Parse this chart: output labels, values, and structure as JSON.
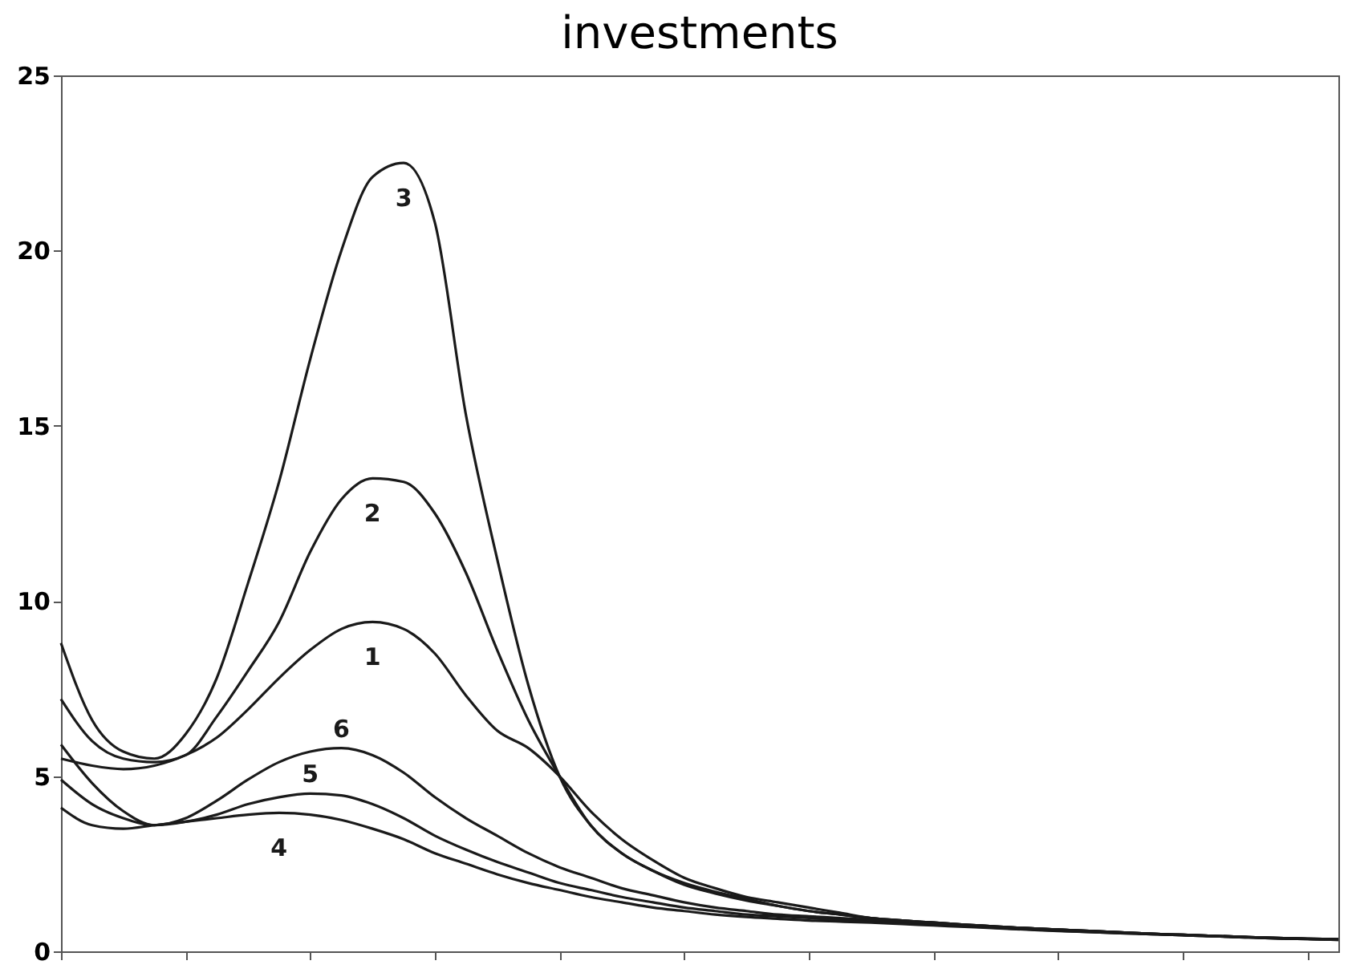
{
  "chart_data": {
    "type": "line",
    "title": "investments",
    "categories": [
      null,
      null,
      null,
      null,
      null,
      null,
      null,
      null,
      null,
      null,
      null,
      null,
      null,
      null,
      null,
      null,
      null,
      null,
      null,
      null,
      null,
      null,
      null,
      null,
      null,
      null,
      null,
      null,
      null,
      null,
      null,
      null,
      null,
      null,
      null,
      null,
      null,
      null,
      null,
      null,
      null,
      null
    ],
    "series": [
      {
        "name": "1",
        "color": "#1a1a1a",
        "values": [
          5.5,
          5.3,
          5.2,
          5.3,
          5.6,
          6.1,
          6.9,
          7.8,
          8.6,
          9.2,
          9.4,
          9.2,
          8.5,
          7.3,
          6.3,
          5.8,
          5.0,
          4.0,
          3.2,
          2.6,
          2.1,
          1.8,
          1.55,
          1.4,
          1.25,
          1.1,
          0.95,
          0.88,
          0.82,
          0.76,
          0.71,
          0.66,
          0.62,
          0.58,
          0.54,
          0.5,
          0.47,
          0.44,
          0.41,
          0.38,
          0.36,
          0.34
        ]
      },
      {
        "name": "2",
        "color": "#1a1a1a",
        "values": [
          7.2,
          6.0,
          5.5,
          5.4,
          5.6,
          6.7,
          8.0,
          9.4,
          11.4,
          12.9,
          13.5,
          13.4,
          12.5,
          10.8,
          8.6,
          6.6,
          5.0,
          3.6,
          2.8,
          2.3,
          1.9,
          1.65,
          1.45,
          1.3,
          1.15,
          1.05,
          0.95,
          0.88,
          0.82,
          0.76,
          0.71,
          0.66,
          0.62,
          0.58,
          0.54,
          0.5,
          0.47,
          0.44,
          0.41,
          0.38,
          0.36,
          0.34
        ]
      },
      {
        "name": "3",
        "color": "#1a1a1a",
        "values": [
          8.8,
          6.6,
          5.7,
          5.5,
          6.2,
          7.8,
          10.5,
          13.4,
          16.9,
          20.0,
          22.1,
          22.5,
          20.8,
          15.3,
          11.2,
          7.6,
          5.0,
          3.6,
          2.8,
          2.3,
          1.95,
          1.7,
          1.5,
          1.3,
          1.15,
          1.05,
          0.95,
          0.88,
          0.82,
          0.76,
          0.71,
          0.66,
          0.62,
          0.58,
          0.54,
          0.5,
          0.47,
          0.44,
          0.41,
          0.38,
          0.36,
          0.34
        ]
      },
      {
        "name": "4",
        "color": "#1a1a1a",
        "values": [
          4.1,
          3.6,
          3.5,
          3.6,
          3.7,
          3.8,
          3.9,
          3.95,
          3.9,
          3.75,
          3.5,
          3.2,
          2.8,
          2.5,
          2.2,
          1.95,
          1.75,
          1.55,
          1.4,
          1.25,
          1.15,
          1.05,
          0.98,
          0.93,
          0.88,
          0.85,
          0.82,
          0.78,
          0.74,
          0.7,
          0.66,
          0.62,
          0.58,
          0.55,
          0.52,
          0.49,
          0.46,
          0.43,
          0.4,
          0.37,
          0.35,
          0.33
        ]
      },
      {
        "name": "5",
        "color": "#1a1a1a",
        "values": [
          4.9,
          4.2,
          3.8,
          3.6,
          3.7,
          3.9,
          4.2,
          4.4,
          4.5,
          4.45,
          4.2,
          3.8,
          3.3,
          2.9,
          2.55,
          2.25,
          1.95,
          1.75,
          1.55,
          1.4,
          1.25,
          1.15,
          1.05,
          1.0,
          0.95,
          0.9,
          0.86,
          0.8,
          0.76,
          0.72,
          0.67,
          0.63,
          0.59,
          0.55,
          0.52,
          0.49,
          0.46,
          0.43,
          0.4,
          0.37,
          0.35,
          0.33
        ]
      },
      {
        "name": "6",
        "color": "#1a1a1a",
        "values": [
          5.9,
          4.8,
          4.0,
          3.6,
          3.8,
          4.3,
          4.9,
          5.4,
          5.7,
          5.8,
          5.6,
          5.1,
          4.4,
          3.8,
          3.3,
          2.8,
          2.4,
          2.1,
          1.8,
          1.6,
          1.4,
          1.25,
          1.15,
          1.05,
          1.0,
          0.95,
          0.9,
          0.85,
          0.8,
          0.75,
          0.7,
          0.66,
          0.62,
          0.58,
          0.54,
          0.5,
          0.47,
          0.44,
          0.41,
          0.38,
          0.36,
          0.34
        ]
      }
    ],
    "ylim": [
      0,
      25
    ],
    "yticks": [
      0,
      5,
      10,
      15,
      20,
      25
    ],
    "tick_labels": "y",
    "grid": false,
    "legend": false,
    "marker": "none",
    "line_style": "solid"
  }
}
